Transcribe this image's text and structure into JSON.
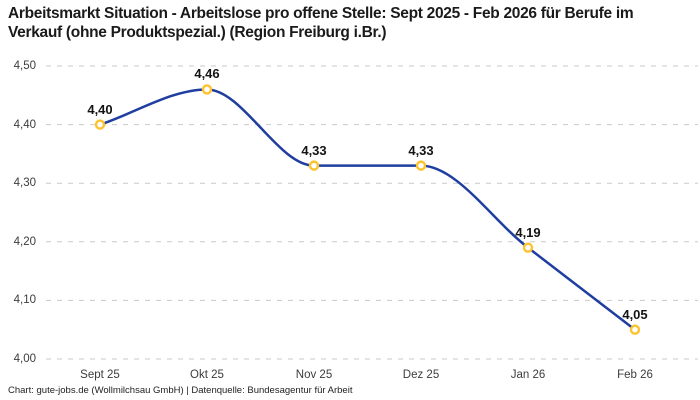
{
  "credit_line": "Chart: gute-jobs.de (Wollmilchsau GmbH) | Datenquelle: Bundesagentur für Arbeit",
  "chart_data": {
    "type": "line",
    "title": "Arbeitsmarkt Situation - Arbeitslose pro offene Stelle: Sept 2025 - Feb 2026 für Berufe im Verkauf (ohne Produktspezial.) (Region Freiburg i.Br.)",
    "categories": [
      "Sept 25",
      "Okt 25",
      "Nov 25",
      "Dez 25",
      "Jan 26",
      "Feb 26"
    ],
    "values": [
      4.4,
      4.46,
      4.33,
      4.33,
      4.19,
      4.05
    ],
    "value_labels": [
      "4,40",
      "4,46",
      "4,33",
      "4,33",
      "4,19",
      "4,05"
    ],
    "xlabel": "",
    "ylabel": "",
    "ylim": [
      4.0,
      4.5
    ],
    "y_ticks": [
      4.5,
      4.4,
      4.3,
      4.2,
      4.1,
      4.0
    ],
    "y_tick_labels": [
      "4,50",
      "4,40",
      "4,30",
      "4,20",
      "4,10",
      "4,00"
    ],
    "grid": "horizontal-dashed",
    "legend_position": "none",
    "line_smoothing": "spline",
    "colors": {
      "line": "#1f3ea0",
      "marker_ring": "#fdc32f",
      "marker_fill": "#ffffff",
      "grid": "#c9c9c9",
      "title_text": "#1a1a1a",
      "tick_text": "#3c3c3c",
      "label_text": "#141414"
    }
  }
}
